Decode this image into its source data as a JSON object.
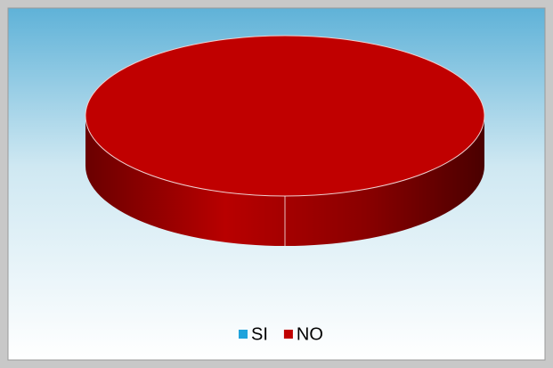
{
  "chart_data": {
    "type": "pie",
    "categories": [
      "SI",
      "NO"
    ],
    "values": [
      0,
      100
    ],
    "colors": [
      "#1fa3dc",
      "#c00000"
    ],
    "legend": "bottom"
  }
}
